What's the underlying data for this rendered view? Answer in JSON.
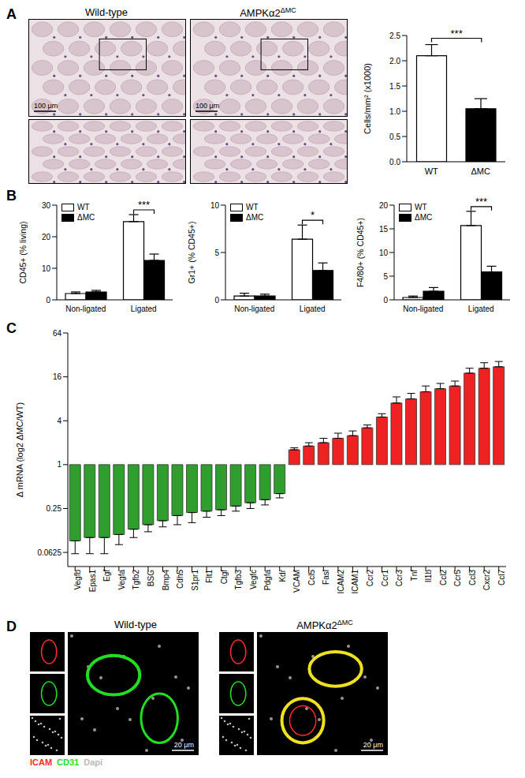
{
  "chart_data": [
    {
      "panel": "A",
      "type": "bar",
      "categories": [
        "WT",
        "ΔMC"
      ],
      "values": [
        2.1,
        1.05
      ],
      "errors": [
        0.22,
        0.2
      ],
      "colors": [
        "#ffffff",
        "#000000"
      ],
      "ylabel": "Cells/mm² (x1000)",
      "ylim": [
        0,
        2.5
      ],
      "yticks": [
        {
          "value": 0,
          "label": "0.0"
        },
        0.5,
        {
          "value": 1,
          "label": "1.0"
        },
        1.5,
        {
          "value": 2,
          "label": "2.0"
        },
        2.5
      ],
      "annotations": [
        {
          "text": "***",
          "between": [
            "WT",
            "ΔMC"
          ]
        }
      ]
    },
    {
      "panel": "B",
      "type": "bar",
      "categories": [
        "Non-ligated",
        "Ligated"
      ],
      "series": [
        {
          "name": "WT",
          "color": "#ffffff",
          "values": [
            2.0,
            24.8
          ],
          "errors": [
            0.5,
            2.2
          ]
        },
        {
          "name": "ΔMC",
          "color": "#000000",
          "values": [
            2.5,
            12.5
          ],
          "errors": [
            0.5,
            2.0
          ]
        }
      ],
      "ylabel": "CD45+ (% living)",
      "ylim": [
        0,
        30
      ],
      "yticks": [
        0,
        10,
        20,
        30
      ],
      "legend": "upper left",
      "annotations": [
        {
          "text": "***",
          "category": "Ligated"
        }
      ]
    },
    {
      "type": "bar",
      "categories": [
        "Non-ligated",
        "Ligated"
      ],
      "series": [
        {
          "name": "WT",
          "color": "#ffffff",
          "values": [
            0.4,
            6.4
          ],
          "errors": [
            0.3,
            1.5
          ]
        },
        {
          "name": "ΔMC",
          "color": "#000000",
          "values": [
            0.4,
            3.1
          ],
          "errors": [
            0.2,
            0.8
          ]
        }
      ],
      "ylabel": "Gr1+ (% CD45+)",
      "ylim": [
        0,
        10
      ],
      "yticks": [
        0,
        5,
        10
      ],
      "legend": "upper left",
      "annotations": [
        {
          "text": "*",
          "category": "Ligated"
        }
      ]
    },
    {
      "type": "bar",
      "categories": [
        "Non-ligated",
        "Ligated"
      ],
      "series": [
        {
          "name": "WT",
          "color": "#ffffff",
          "values": [
            0.5,
            15.7
          ],
          "errors": [
            0.3,
            3.0
          ]
        },
        {
          "name": "ΔMC",
          "color": "#000000",
          "values": [
            1.8,
            5.9
          ],
          "errors": [
            0.8,
            1.2
          ]
        }
      ],
      "ylabel": "F4/80+ (% CD45+)",
      "ylim": [
        0,
        20
      ],
      "yticks": [
        0,
        5,
        10,
        15,
        20
      ],
      "legend": "upper left",
      "annotations": [
        {
          "text": "***",
          "category": "Ligated"
        }
      ]
    },
    {
      "panel": "C",
      "type": "bar",
      "log": "y",
      "categories": [
        "Vegfb",
        "Epas1",
        "Egf",
        "Vegfa",
        "Tgfb2",
        "BSG",
        "Bmp4",
        "Cdh5",
        "S1pr1",
        "Flt1",
        "Ctgf",
        "Tgfb3",
        "Vegfc",
        "Pdgfa",
        "Kdr",
        "VCAM",
        "Ccl5",
        "Fasl",
        "ICAM2",
        "ICAM1",
        "Ccr2",
        "Ccr1",
        "Ccr3",
        "Tnf",
        "Il1b",
        "Ccl2",
        "Ccr5",
        "Ccl3",
        "Cxcr2",
        "Ccl7"
      ],
      "values": [
        0.09,
        0.1,
        0.1,
        0.11,
        0.13,
        0.15,
        0.17,
        0.2,
        0.22,
        0.23,
        0.24,
        0.27,
        0.3,
        0.33,
        0.4,
        1.6,
        1.8,
        2.0,
        2.3,
        2.5,
        3.2,
        4.5,
        7,
        8,
        10,
        11,
        12,
        18,
        21,
        22
      ],
      "errors": [
        0.03,
        0.04,
        0.04,
        0.03,
        0.03,
        0.03,
        0.03,
        0.05,
        0.06,
        0.04,
        0.04,
        0.04,
        0.05,
        0.05,
        0.05,
        0.1,
        0.2,
        0.3,
        0.4,
        0.4,
        0.3,
        0.5,
        1.5,
        1.5,
        2,
        2,
        2,
        3,
        4,
        4
      ],
      "colors": [
        "#2f9e2f",
        "#2f9e2f",
        "#2f9e2f",
        "#2f9e2f",
        "#2f9e2f",
        "#2f9e2f",
        "#2f9e2f",
        "#2f9e2f",
        "#2f9e2f",
        "#2f9e2f",
        "#2f9e2f",
        "#2f9e2f",
        "#2f9e2f",
        "#2f9e2f",
        "#2f9e2f",
        "#ee2222",
        "#ee2222",
        "#ee2222",
        "#ee2222",
        "#ee2222",
        "#ee2222",
        "#ee2222",
        "#ee2222",
        "#ee2222",
        "#ee2222",
        "#ee2222",
        "#ee2222",
        "#ee2222",
        "#ee2222",
        "#ee2222"
      ],
      "ylabel": "Δ mRNA (log2 ΔMC/WT)",
      "ylim": [
        0.04,
        64
      ],
      "yticks": [
        0.0625,
        0.25,
        1,
        4,
        16,
        64
      ]
    }
  ],
  "images": {
    "A": {
      "columns": [
        {
          "title": {
            "text": "Wild-type"
          },
          "scale_bar": "100 μm"
        },
        {
          "title": {
            "text": "AMPKα2",
            "superscript": "ΔMC"
          },
          "scale_bar": "100 μm"
        }
      ]
    },
    "D": {
      "panel": "D",
      "columns": [
        {
          "title": {
            "text": "Wild-type"
          },
          "scale_bar": "20 μm"
        },
        {
          "title": {
            "text": "AMPKα2",
            "superscript": "ΔMC"
          },
          "scale_bar": "20 μm"
        }
      ],
      "channels": [
        {
          "name": "ICAM",
          "color": "#ff2a2a"
        },
        {
          "name": "CD31",
          "color": "#22dd22"
        },
        {
          "name": "Dapi",
          "color": "#bbbbbb"
        }
      ]
    }
  }
}
